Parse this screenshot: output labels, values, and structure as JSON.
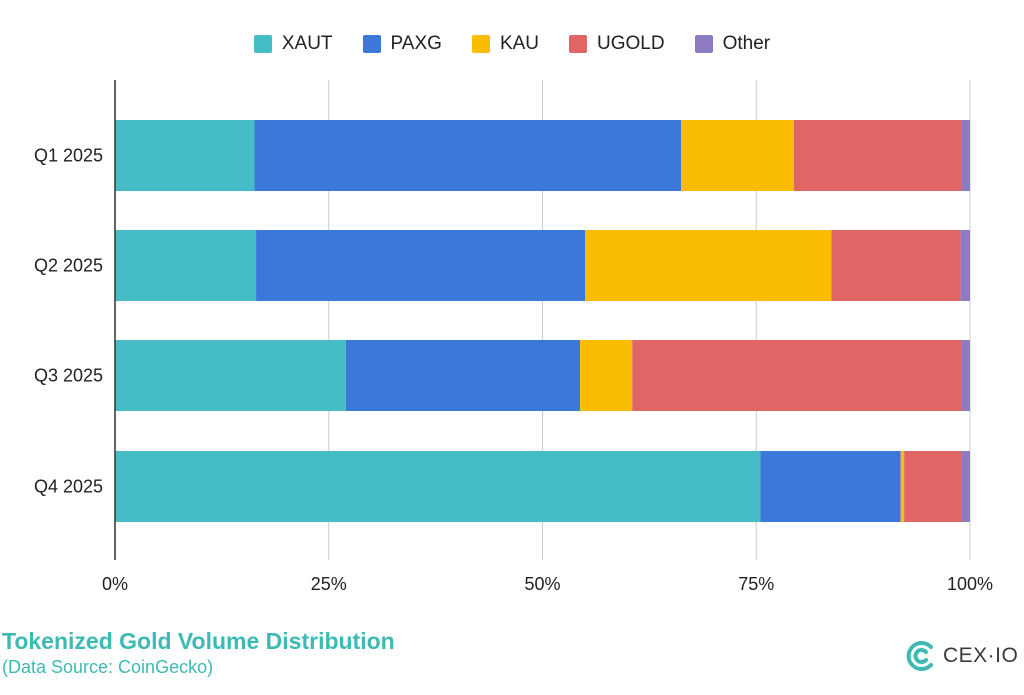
{
  "chart_data": {
    "type": "bar",
    "orientation": "horizontal",
    "stacked": true,
    "categories": [
      "Q1 2025",
      "Q2 2025",
      "Q3 2025",
      "Q4 2025"
    ],
    "series": [
      {
        "name": "XAUT",
        "color": "#46bdc6",
        "values": [
          16.3,
          16.5,
          27.0,
          75.5
        ]
      },
      {
        "name": "PAXG",
        "color": "#3c78d8",
        "values": [
          49.9,
          38.5,
          27.4,
          16.4
        ]
      },
      {
        "name": "KAU",
        "color": "#fbbc04",
        "values": [
          13.2,
          28.8,
          6.1,
          0.4
        ]
      },
      {
        "name": "UGOLD",
        "color": "#e06666",
        "values": [
          19.6,
          15.1,
          38.5,
          6.7
        ]
      },
      {
        "name": "Other",
        "color": "#8e7cc3",
        "values": [
          1.0,
          1.1,
          1.0,
          1.0
        ]
      }
    ],
    "xlim": [
      0,
      100
    ],
    "x_ticks": [
      "0%",
      "25%",
      "50%",
      "75%",
      "100%"
    ],
    "grid": "vertical",
    "legend_position": "top-center"
  },
  "footer": {
    "title": "Tokenized Gold Volume Distribution",
    "subtitle": "(Data Source: CoinGecko)"
  },
  "brand": {
    "name": "CEX·IO",
    "icon": "cexio-logo-icon",
    "color": "#3dbab3"
  }
}
